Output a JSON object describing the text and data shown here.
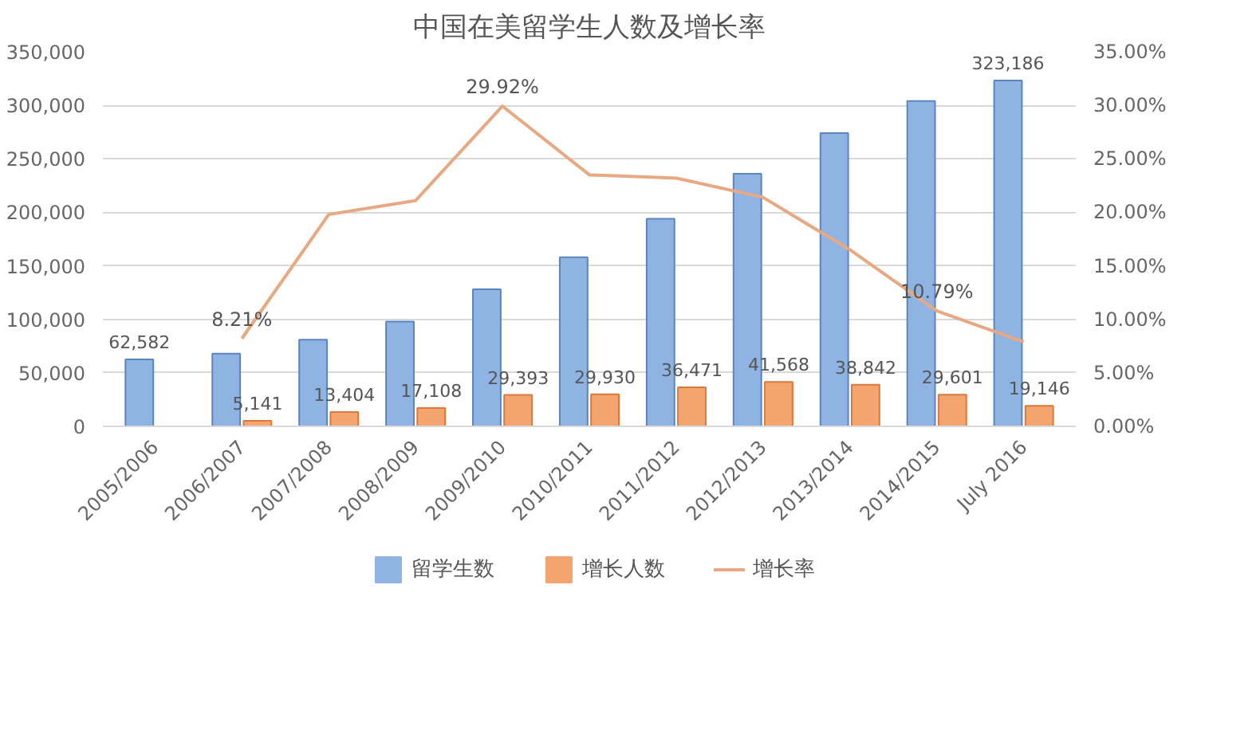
{
  "chart_data": {
    "type": "bar",
    "title": "中国在美留学生人数及增长率",
    "categories": [
      "2005/2006",
      "2006/2007",
      "2007/2008",
      "2008/2009",
      "2009/2010",
      "2010/2011",
      "2011/2012",
      "2012/2013",
      "2013/2014",
      "2014/2015",
      "July 2016"
    ],
    "series": [
      {
        "name": "留学生数",
        "color": "#8fb4e3",
        "values": [
          62582,
          68000,
          81000,
          98000,
          128000,
          158000,
          194000,
          236000,
          274000,
          304000,
          323186
        ],
        "value_labels": [
          "62,582",
          null,
          null,
          null,
          null,
          null,
          null,
          null,
          null,
          null,
          "323,186"
        ]
      },
      {
        "name": "增长人数",
        "color": "#f4a56f",
        "values": [
          null,
          5141,
          13404,
          17108,
          29393,
          29930,
          36471,
          41568,
          38842,
          29601,
          19146
        ],
        "value_labels": [
          null,
          "5,141",
          "13,404",
          "17,108",
          "29,393",
          "29,930",
          "36,471",
          "41,568",
          "38,842",
          "29,601",
          "19,146"
        ]
      },
      {
        "name": "增长率",
        "type": "line",
        "axis": "y2",
        "color": "#e8a882",
        "values": [
          null,
          8.21,
          19.8,
          21.1,
          29.92,
          23.5,
          23.2,
          21.4,
          16.5,
          10.79,
          7.9
        ],
        "value_labels": [
          null,
          "8.21%",
          null,
          null,
          "29.92%",
          null,
          null,
          null,
          null,
          "10.79%",
          null
        ]
      }
    ],
    "ylim": [
      0,
      350000
    ],
    "yticks": [
      {
        "value": 0,
        "label": "0"
      },
      {
        "value": 50000,
        "label": "50,000"
      },
      {
        "value": 100000,
        "label": "100,000"
      },
      {
        "value": 150000,
        "label": "150,000"
      },
      {
        "value": 200000,
        "label": "200,000"
      },
      {
        "value": 250000,
        "label": "250,000"
      },
      {
        "value": 300000,
        "label": "300,000"
      },
      {
        "value": 350000,
        "label": "350,000"
      }
    ],
    "y2lim": [
      0,
      35
    ],
    "y2ticks": [
      {
        "value": 0,
        "label": "0.00%"
      },
      {
        "value": 5,
        "label": "5.00%"
      },
      {
        "value": 10,
        "label": "10.00%"
      },
      {
        "value": 15,
        "label": "15.00%"
      },
      {
        "value": 20,
        "label": "20.00%"
      },
      {
        "value": 25,
        "label": "25.00%"
      },
      {
        "value": 30,
        "label": "30.00%"
      },
      {
        "value": 35,
        "label": "35.00%"
      }
    ],
    "grid": "y",
    "legend": "bottom"
  }
}
